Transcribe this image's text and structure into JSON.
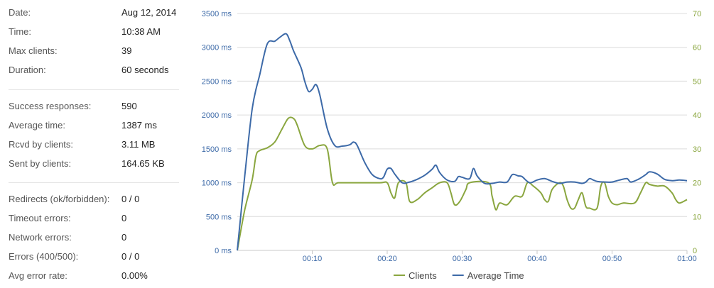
{
  "stats": {
    "group1": [
      {
        "label": "Date:",
        "value": "Aug 12, 2014"
      },
      {
        "label": "Time:",
        "value": "10:38 AM"
      },
      {
        "label": "Max clients:",
        "value": "39"
      },
      {
        "label": "Duration:",
        "value": "60 seconds"
      }
    ],
    "group2": [
      {
        "label": "Success responses:",
        "value": "590"
      },
      {
        "label": "Average time:",
        "value": "1387 ms"
      },
      {
        "label": "Rcvd by clients:",
        "value": "3.11 MB"
      },
      {
        "label": "Sent by clients:",
        "value": "164.65 KB"
      }
    ],
    "group3": [
      {
        "label": "Redirects (ok/forbidden):",
        "value": "0 / 0"
      },
      {
        "label": "Timeout errors:",
        "value": "0"
      },
      {
        "label": "Network errors:",
        "value": "0"
      },
      {
        "label": "Errors (400/500):",
        "value": "0 / 0"
      },
      {
        "label": "Avg error rate:",
        "value": "0.00%"
      }
    ]
  },
  "chart_data": {
    "type": "line",
    "grid": true,
    "legend_position": "bottom-center",
    "x_ticks": [
      "00:10",
      "00:20",
      "00:30",
      "00:40",
      "00:50",
      "01:00"
    ],
    "x_tick_values": [
      10,
      20,
      30,
      40,
      50,
      60
    ],
    "xlim": [
      0,
      60
    ],
    "y_left": {
      "ticks": [
        "0 ms",
        "500 ms",
        "1000 ms",
        "1500 ms",
        "2000 ms",
        "2500 ms",
        "3000 ms",
        "3500 ms"
      ],
      "ylim": [
        0,
        3500
      ],
      "color": "#3d6aa8"
    },
    "y_right": {
      "ticks": [
        "0",
        "10",
        "20",
        "30",
        "40",
        "50",
        "60",
        "70"
      ],
      "ylim": [
        0,
        70
      ],
      "color": "#8aa63f"
    },
    "series": [
      {
        "name": "Clients",
        "axis": "right",
        "color": "#8aa63f",
        "points": [
          [
            0,
            0
          ],
          [
            1,
            12
          ],
          [
            2,
            21
          ],
          [
            2.5,
            28
          ],
          [
            3,
            29.5
          ],
          [
            4,
            30.3
          ],
          [
            5,
            32
          ],
          [
            6,
            36
          ],
          [
            6.8,
            39
          ],
          [
            7.5,
            39
          ],
          [
            8,
            37
          ],
          [
            9,
            31
          ],
          [
            10,
            30
          ],
          [
            11,
            31
          ],
          [
            12,
            30
          ],
          [
            12.7,
            20
          ],
          [
            13.5,
            20
          ],
          [
            16,
            20
          ],
          [
            19,
            20
          ],
          [
            20,
            20
          ],
          [
            20.5,
            17
          ],
          [
            21,
            15.5
          ],
          [
            21.5,
            20
          ],
          [
            22.5,
            20
          ],
          [
            23,
            14.5
          ],
          [
            24,
            15
          ],
          [
            25,
            17
          ],
          [
            26,
            18.5
          ],
          [
            27,
            20
          ],
          [
            28,
            20
          ],
          [
            28.5,
            17
          ],
          [
            29,
            13.5
          ],
          [
            29.7,
            14.5
          ],
          [
            30.5,
            18
          ],
          [
            31,
            20
          ],
          [
            33.5,
            20
          ],
          [
            34,
            16
          ],
          [
            34.5,
            12
          ],
          [
            35,
            14
          ],
          [
            36,
            13.5
          ],
          [
            37,
            16
          ],
          [
            38,
            16
          ],
          [
            38.7,
            20
          ],
          [
            39.5,
            19
          ],
          [
            40.5,
            17
          ],
          [
            41,
            15
          ],
          [
            41.5,
            14.5
          ],
          [
            42,
            18
          ],
          [
            43,
            20
          ],
          [
            43.5,
            19
          ],
          [
            44,
            15
          ],
          [
            44.5,
            12.5
          ],
          [
            45,
            12.5
          ],
          [
            45.5,
            15
          ],
          [
            46,
            17
          ],
          [
            46.5,
            13
          ],
          [
            47,
            12.5
          ],
          [
            48,
            12.5
          ],
          [
            48.5,
            19
          ],
          [
            49,
            20
          ],
          [
            49.5,
            16
          ],
          [
            50,
            14
          ],
          [
            50.7,
            13.5
          ],
          [
            51.5,
            14
          ],
          [
            53,
            14
          ],
          [
            53.8,
            17
          ],
          [
            54.5,
            20
          ],
          [
            55,
            19.5
          ],
          [
            56,
            19
          ],
          [
            57,
            19
          ],
          [
            58,
            17
          ],
          [
            58.5,
            15
          ],
          [
            59,
            14
          ],
          [
            60,
            15
          ]
        ]
      },
      {
        "name": "Average Time",
        "axis": "left",
        "color": "#3d6aa8",
        "points": [
          [
            0,
            0
          ],
          [
            1,
            1100
          ],
          [
            2,
            2100
          ],
          [
            3,
            2600
          ],
          [
            4,
            3050
          ],
          [
            5,
            3090
          ],
          [
            5.7,
            3150
          ],
          [
            6.5,
            3200
          ],
          [
            7,
            3100
          ],
          [
            7.5,
            2950
          ],
          [
            8.5,
            2700
          ],
          [
            9,
            2500
          ],
          [
            9.5,
            2350
          ],
          [
            10,
            2380
          ],
          [
            10.5,
            2450
          ],
          [
            11,
            2300
          ],
          [
            12,
            1800
          ],
          [
            13,
            1550
          ],
          [
            14,
            1540
          ],
          [
            15,
            1560
          ],
          [
            15.5,
            1600
          ],
          [
            16,
            1550
          ],
          [
            17,
            1300
          ],
          [
            18,
            1120
          ],
          [
            19,
            1060
          ],
          [
            19.5,
            1080
          ],
          [
            20,
            1200
          ],
          [
            20.5,
            1210
          ],
          [
            21,
            1130
          ],
          [
            22,
            1000
          ],
          [
            23,
            1010
          ],
          [
            24,
            1050
          ],
          [
            25,
            1110
          ],
          [
            26,
            1200
          ],
          [
            26.5,
            1260
          ],
          [
            27,
            1150
          ],
          [
            28,
            1040
          ],
          [
            29,
            1020
          ],
          [
            29.5,
            1090
          ],
          [
            30,
            1080
          ],
          [
            31,
            1060
          ],
          [
            31.5,
            1210
          ],
          [
            32,
            1100
          ],
          [
            33,
            990
          ],
          [
            34,
            990
          ],
          [
            35,
            1010
          ],
          [
            36,
            1010
          ],
          [
            36.7,
            1120
          ],
          [
            37.5,
            1100
          ],
          [
            38,
            1090
          ],
          [
            39,
            1000
          ],
          [
            40,
            1040
          ],
          [
            41,
            1060
          ],
          [
            42,
            1020
          ],
          [
            43,
            990
          ],
          [
            44,
            1010
          ],
          [
            45,
            1010
          ],
          [
            46,
            990
          ],
          [
            46.5,
            1010
          ],
          [
            47,
            1060
          ],
          [
            47.5,
            1040
          ],
          [
            48,
            1020
          ],
          [
            49,
            1010
          ],
          [
            50,
            1010
          ],
          [
            51,
            1040
          ],
          [
            52,
            1060
          ],
          [
            52.5,
            1010
          ],
          [
            53.5,
            1050
          ],
          [
            54.5,
            1120
          ],
          [
            55,
            1160
          ],
          [
            56,
            1130
          ],
          [
            57,
            1050
          ],
          [
            58,
            1030
          ],
          [
            59,
            1040
          ],
          [
            60,
            1030
          ]
        ]
      }
    ]
  }
}
